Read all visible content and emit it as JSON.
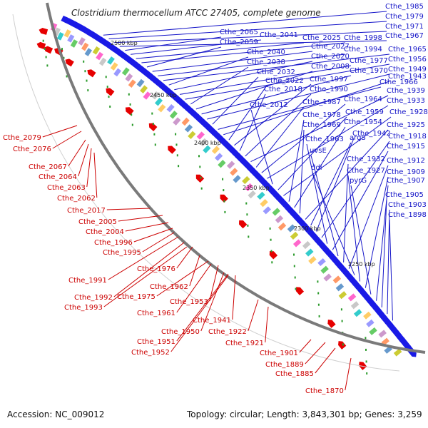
{
  "title": "Clostridium thermocellum ATCC 27405, complete genome",
  "footer": {
    "accession": "Accession: NC_009012",
    "summary": "Topology: circular; Length: 3,843,301 bp; Genes: 3,259"
  },
  "scale_labels": [
    "2500 kbp",
    "2450 kbp",
    "2400 kbp",
    "2350 kbp",
    "2300 kbp",
    "2250 kbp"
  ],
  "colors": {
    "forward_label": "#1414c8",
    "reverse_label": "#cc0000",
    "forward_genes": "#1a1ae6",
    "reverse_genes": "#e60000",
    "backbone": "#808080"
  },
  "blue_labels": [
    "Cthe_1985",
    "Cthe_1979",
    "Cthe_1971",
    "Cthe_1967",
    "Cthe_2065",
    "Cthe_2041",
    "Cthe_2025",
    "Cthe_1998",
    "Cthe_2059",
    "Cthe_2027",
    "Cthe_1994",
    "Cthe_1965",
    "Cthe_2040",
    "Cthe_2020",
    "Cthe_1977",
    "Cthe_1956",
    "Cthe_2038",
    "Cthe_2008",
    "Cthe_1970",
    "Cthe_1949",
    "Cthe_2032",
    "Cthe_1966",
    "Cthe_1943",
    "Cthe_2022",
    "Cthe_1997",
    "Cthe_2018",
    "Cthe_1990",
    "Cthe_1939",
    "Cthe_1987",
    "Cthe_1964",
    "Cthe_1933",
    "Cthe_2012",
    "Cthe_1959",
    "Cthe_1928",
    "Cthe_1978",
    "Cthe_1954",
    "Cthe_1969",
    "Cthe_1925",
    "argS",
    "Cthe_1942",
    "Cthe_1918",
    "Cthe_1963",
    "Cthe_1915",
    "uvsE",
    "Cthe_1932",
    "Cthe_1912",
    "ddl",
    "Cthe_1927",
    "Cthe_1909",
    "pyrG",
    "Cthe_1907",
    "Cthe_1905",
    "Cthe_1903",
    "Cthe_1898"
  ],
  "red_labels": [
    "Cthe_2079",
    "Cthe_2076",
    "Cthe_2067",
    "Cthe_2064",
    "Cthe_2063",
    "Cthe_2062",
    "Cthe_2017",
    "Cthe_2005",
    "Cthe_2004",
    "Cthe_1996",
    "Cthe_1995",
    "Cthe_1976",
    "Cthe_1991",
    "Cthe_1962",
    "Cthe_1992",
    "Cthe_1975",
    "Cthe_1993",
    "Cthe_1953",
    "Cthe_1961",
    "Cthe_1941",
    "Cthe_1950",
    "Cthe_1922",
    "Cthe_1951",
    "Cthe_1921",
    "Cthe_1952",
    "Cthe_1901",
    "Cthe_1889",
    "Cthe_1885",
    "Cthe_1870"
  ]
}
